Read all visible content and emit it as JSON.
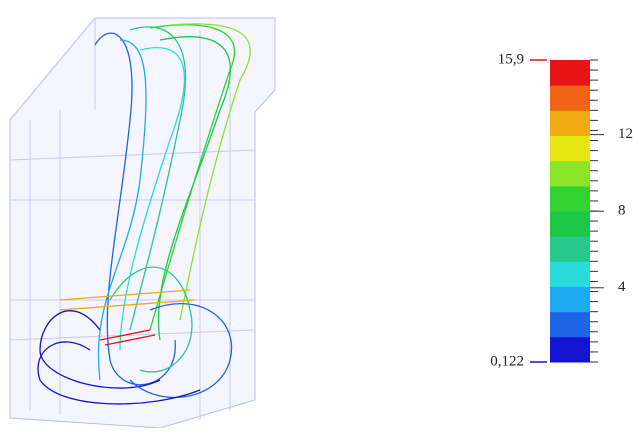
{
  "chart_data": {
    "type": "colorbar",
    "colors": [
      "#1414d2",
      "#1e64e6",
      "#1eaaf0",
      "#28dcdc",
      "#28c88c",
      "#1ec846",
      "#32d232",
      "#8ce628",
      "#e6e614",
      "#f0aa14",
      "#f06414",
      "#e61414"
    ],
    "ylim": [
      0.122,
      15.9
    ],
    "yticks": [
      {
        "value": 0.122,
        "label": "0,122"
      },
      4,
      8,
      12,
      {
        "value": 15.9,
        "label": "15,9"
      }
    ]
  }
}
